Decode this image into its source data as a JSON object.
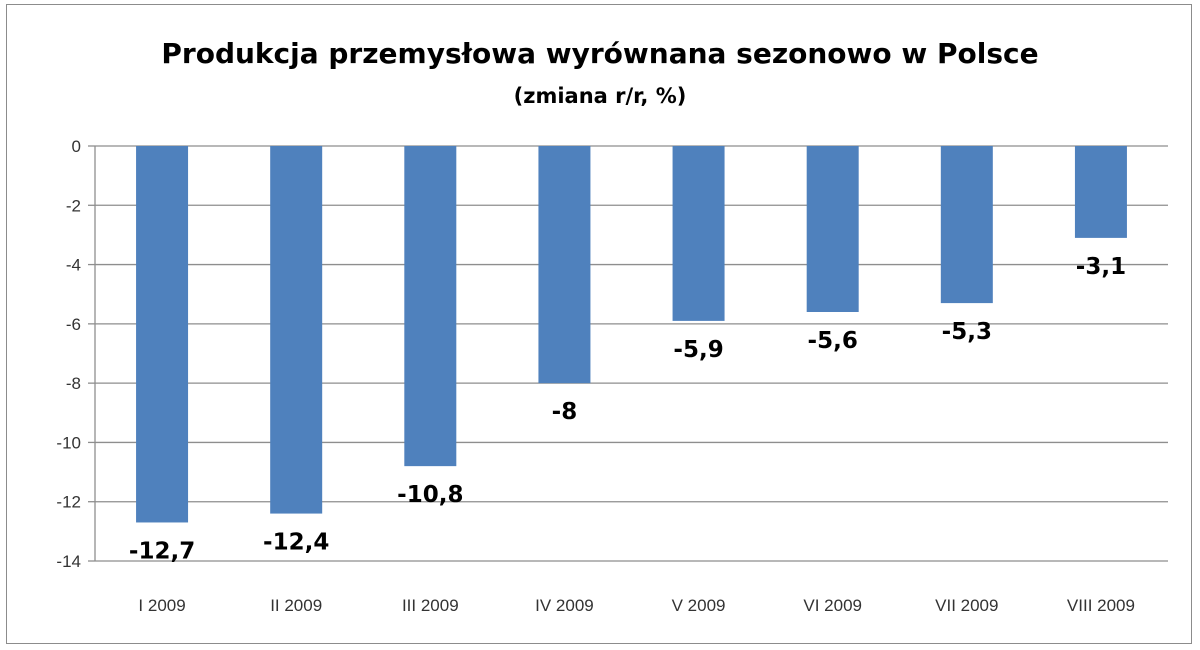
{
  "chart_data": {
    "type": "bar",
    "title": "Produkcja przemysłowa wyrównana sezonowo w Polsce",
    "subtitle": "(zmiana r/r, %)",
    "categories": [
      "I 2009",
      "II 2009",
      "III 2009",
      "IV 2009",
      "V 2009",
      "VI 2009",
      "VII 2009",
      "VIII 2009"
    ],
    "values": [
      -12.7,
      -12.4,
      -10.8,
      -8,
      -5.9,
      -5.6,
      -5.3,
      -3.1
    ],
    "data_labels": [
      "-12,7",
      "-12,4",
      "-10,8",
      "-8",
      "-5,9",
      "-5,6",
      "-5,3",
      "-3,1"
    ],
    "y_ticks": [
      0,
      -2,
      -4,
      -6,
      -8,
      -10,
      -12,
      -14
    ],
    "ylim": [
      -14,
      0
    ],
    "grid": true,
    "legend": "none",
    "bar_color": "#4f81bd"
  }
}
